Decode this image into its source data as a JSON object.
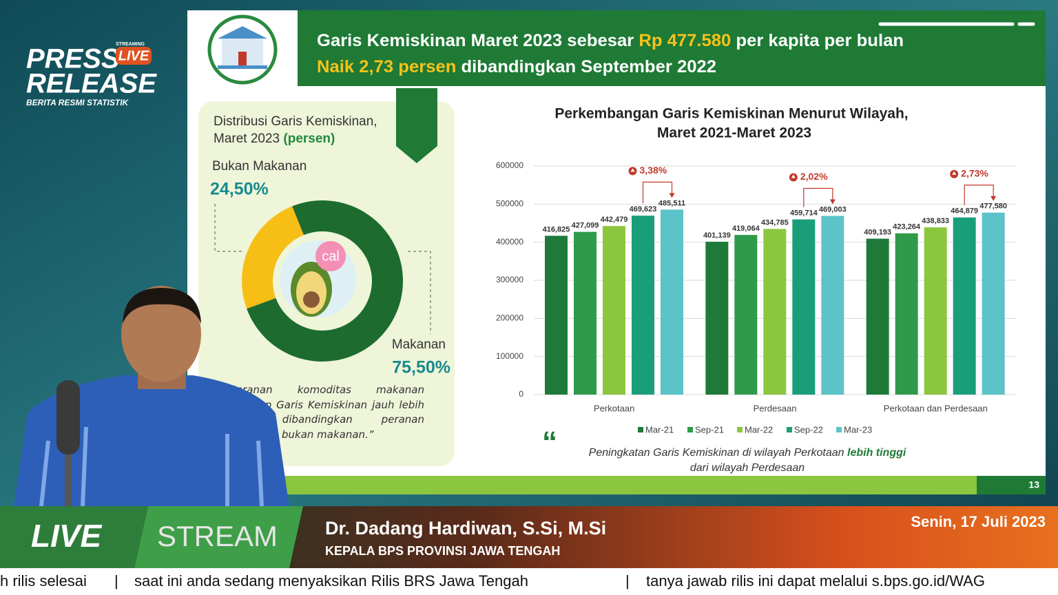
{
  "logo": {
    "press": "PRESS",
    "streaming": "STREAMING",
    "live": "LIVE",
    "release": "RELEASE",
    "subtitle": "BERITA RESMI STATISTIK"
  },
  "header": {
    "line1": [
      "Garis Kemiskinan Maret 2023 sebesar",
      "Rp 477.580",
      "per kapita per bulan"
    ],
    "line2": [
      "Naik 2,73 persen",
      "dibandingkan September 2022"
    ]
  },
  "chart_data": [
    {
      "type": "donut",
      "title": [
        "Distribusi Garis Kemiskinan,",
        "Maret 2023"
      ],
      "unit": "(persen)",
      "categories": [
        "Bukan Makanan",
        "Makanan"
      ],
      "values": [
        24.5,
        75.5
      ],
      "value_labels": [
        "24,50%",
        "75,50%"
      ],
      "colors": [
        "#f7be16",
        "#1d6b2f"
      ],
      "icon_text": "cal",
      "quote": "“Peranan komoditas makanan terhadap Garis Kemiskinan jauh lebih besar dibandingkan peranan komoditas bukan makanan.”"
    },
    {
      "type": "bar",
      "title": [
        "Perkembangan Garis Kemiskinan Menurut Wilayah,",
        "Maret 2021-Maret 2023"
      ],
      "categories": [
        "Perkotaan",
        "Perdesaan",
        "Perkotaan dan Perdesaan"
      ],
      "series": [
        {
          "name": "Mar-21",
          "color": "#1f7a3a",
          "values": [
            416825,
            401139,
            409193
          ],
          "value_labels": [
            "416,825",
            "401,139",
            "409,193"
          ]
        },
        {
          "name": "Sep-21",
          "color": "#2e9a4a",
          "values": [
            427099,
            419064,
            423264
          ],
          "value_labels": [
            "427,099",
            "419,064",
            "423,264"
          ]
        },
        {
          "name": "Mar-22",
          "color": "#8cc63f",
          "values": [
            442479,
            434785,
            438833
          ],
          "value_labels": [
            "442,479",
            "434,785",
            "438,833"
          ]
        },
        {
          "name": "Sep-22",
          "color": "#1a9e7a",
          "values": [
            469623,
            459714,
            464879
          ],
          "value_labels": [
            "469,623",
            "459,714",
            "464,879"
          ]
        },
        {
          "name": "Mar-23",
          "color": "#5cc3c9",
          "values": [
            485511,
            469003,
            477580
          ],
          "value_labels": [
            "485,511",
            "469,003",
            "477,580"
          ]
        }
      ],
      "ylim": [
        0,
        600000
      ],
      "yticks": [
        0,
        100000,
        200000,
        300000,
        400000,
        500000,
        600000
      ],
      "grid": true,
      "annotations": [
        "3,38%",
        "2,02%",
        "2,73%"
      ],
      "quote_mark": "“",
      "quote": [
        "Peningkatan Garis Kemiskinan di wilayah Perkotaan",
        "lebih tinggi",
        "dari wilayah Perdesaan"
      ]
    }
  ],
  "page_number": "13",
  "lower_third": {
    "live": "LIVE",
    "stream": "STREAM",
    "name": "Dr. Dadang Hardiwan, S.Si, M.Si",
    "position": "KEPALA BPS PROVINSI JAWA TENGAH",
    "date": "Senin, 17 Juli 2023"
  },
  "ticker": [
    "h rilis selesai",
    "|",
    "saat ini anda sedang menyaksikan Rilis BRS Jawa Tengah",
    "|",
    "tanya jawab rilis ini dapat melalui s.bps.go.id/WAG"
  ]
}
